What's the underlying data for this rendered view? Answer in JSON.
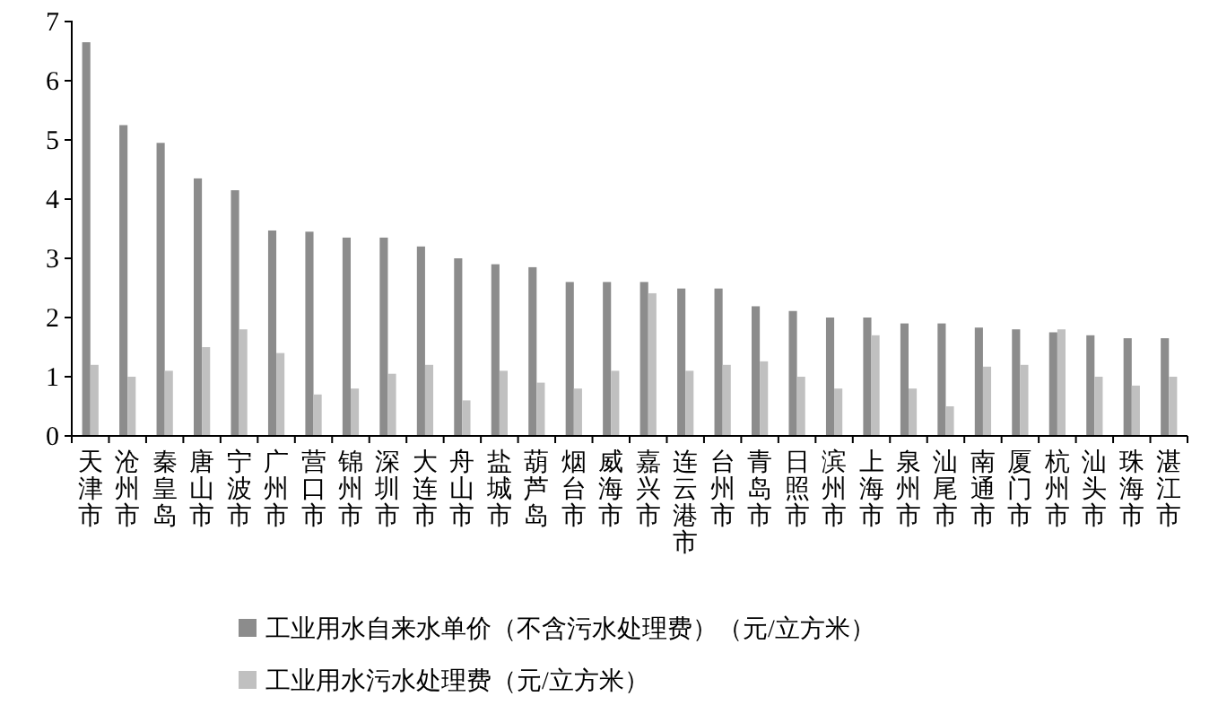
{
  "chart_data": {
    "type": "bar",
    "categories": [
      "天津市",
      "沧州市",
      "秦皇岛",
      "唐山市",
      "宁波市",
      "广州市",
      "营口市",
      "锦州市",
      "深圳市",
      "大连市",
      "舟山市",
      "盐城市",
      "葫芦岛",
      "烟台市",
      "威海市",
      "嘉兴市",
      "连云港市",
      "台州市",
      "青岛市",
      "日照市",
      "滨州市",
      "上海市",
      "泉州市",
      "汕尾市",
      "南通市",
      "厦门市",
      "杭州市",
      "汕头市",
      "珠海市",
      "湛江市"
    ],
    "series": [
      {
        "name": "工业用水自来水单价（不含污水处理费）（元/立方米）",
        "color": "#8c8c8c",
        "values": [
          6.65,
          5.25,
          4.95,
          4.35,
          4.15,
          3.47,
          3.45,
          3.35,
          3.35,
          3.2,
          3.0,
          2.9,
          2.85,
          2.6,
          2.6,
          2.6,
          2.49,
          2.49,
          2.19,
          2.11,
          2.0,
          2.0,
          1.9,
          1.9,
          1.83,
          1.8,
          1.75,
          1.7,
          1.65,
          1.65
        ]
      },
      {
        "name": "工业用水污水处理费（元/立方米）",
        "color": "#c0c0c0",
        "values": [
          1.2,
          1.0,
          1.1,
          1.5,
          1.8,
          1.4,
          0.7,
          0.8,
          1.05,
          1.2,
          0.6,
          1.1,
          0.9,
          0.8,
          1.1,
          2.41,
          1.1,
          1.2,
          1.26,
          1.0,
          0.8,
          1.7,
          0.8,
          0.5,
          1.17,
          1.2,
          1.8,
          1.0,
          0.85,
          1.0
        ]
      }
    ],
    "ylim": [
      0,
      7
    ],
    "yticks": [
      0,
      1,
      2,
      3,
      4,
      5,
      6,
      7
    ],
    "grid": false,
    "legend": "bottom"
  }
}
